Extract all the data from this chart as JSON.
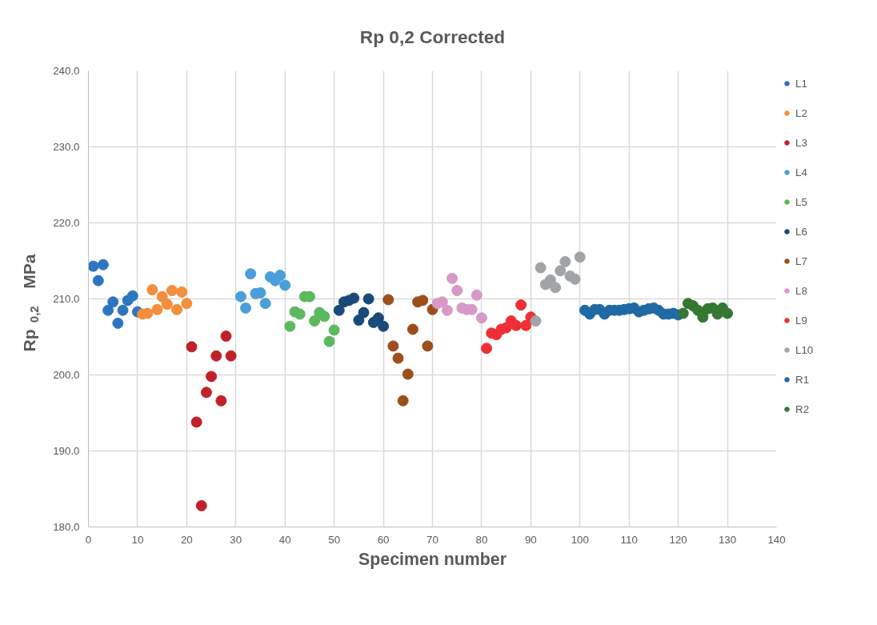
{
  "chart_data": {
    "type": "scatter",
    "title": "Rp 0,2 Corrected",
    "xlabel": "Specimen number",
    "ylabel": "Rp $_{0,2}$  MPa",
    "xlim": [
      0,
      140
    ],
    "ylim": [
      180,
      240
    ],
    "xticks": [
      0,
      10,
      20,
      30,
      40,
      50,
      60,
      70,
      80,
      90,
      100,
      110,
      120,
      130,
      140
    ],
    "yticks": [
      {
        "value": 180,
        "label": "180.0"
      },
      {
        "value": 190,
        "label": "190.0"
      },
      {
        "value": 200,
        "label": "200.0"
      },
      {
        "value": 210,
        "label": "210.0"
      },
      {
        "value": 220,
        "label": "220.0"
      },
      {
        "value": 230,
        "label": "230.0"
      },
      {
        "value": 240,
        "label": "240.0"
      }
    ],
    "grid": true,
    "legend": "right",
    "marker": "circle",
    "series": [
      {
        "name": "L1",
        "color": "#2e75c0",
        "x": [
          1,
          2,
          3,
          4,
          5,
          6,
          7,
          8,
          9,
          10
        ],
        "values": [
          214.3,
          212.4,
          214.5,
          208.5,
          209.6,
          206.8,
          208.5,
          209.8,
          210.4,
          208.3
        ]
      },
      {
        "name": "L2",
        "color": "#f28e3c",
        "x": [
          11,
          12,
          13,
          14,
          15,
          16,
          17,
          18,
          19,
          20
        ],
        "values": [
          208.0,
          208.1,
          211.2,
          208.6,
          210.3,
          209.3,
          211.1,
          208.6,
          210.9,
          209.4
        ]
      },
      {
        "name": "L3",
        "color": "#c0212b",
        "x": [
          21,
          22,
          23,
          24,
          25,
          26,
          27,
          28,
          29
        ],
        "values": [
          203.7,
          193.8,
          182.8,
          197.7,
          199.8,
          202.5,
          196.6,
          205.1,
          202.5
        ]
      },
      {
        "name": "L4",
        "color": "#4a9fdb",
        "x": [
          31,
          32,
          33,
          34,
          35,
          36,
          37,
          38,
          39,
          40
        ],
        "values": [
          210.3,
          208.8,
          213.3,
          210.7,
          210.8,
          209.4,
          212.9,
          212.4,
          213.1,
          211.8
        ]
      },
      {
        "name": "L5",
        "color": "#5cb85c",
        "x": [
          41,
          42,
          43,
          44,
          45,
          46,
          47,
          48,
          49,
          50
        ],
        "values": [
          206.4,
          208.3,
          208.0,
          210.3,
          210.3,
          207.1,
          208.2,
          207.7,
          204.4,
          205.9
        ]
      },
      {
        "name": "L6",
        "color": "#1a4a7a",
        "x": [
          51,
          52,
          53,
          54,
          55,
          56,
          57,
          58,
          59,
          60
        ],
        "values": [
          208.5,
          209.6,
          209.8,
          210.1,
          207.2,
          208.2,
          210.0,
          206.9,
          207.5,
          206.4
        ]
      },
      {
        "name": "L7",
        "color": "#9c4f1c",
        "x": [
          61,
          62,
          63,
          64,
          65,
          66,
          67,
          68,
          69,
          70
        ],
        "values": [
          209.9,
          203.8,
          202.2,
          196.6,
          200.1,
          206.0,
          209.6,
          209.8,
          203.8,
          208.6
        ]
      },
      {
        "name": "L8",
        "color": "#d898c8",
        "x": [
          71,
          72,
          73,
          74,
          75,
          76,
          77,
          78,
          79,
          80
        ],
        "values": [
          209.4,
          209.6,
          208.5,
          212.7,
          211.1,
          208.8,
          208.6,
          208.6,
          210.5,
          207.5
        ]
      },
      {
        "name": "L9",
        "color": "#ef2e35",
        "x": [
          81,
          82,
          83,
          84,
          85,
          86,
          87,
          88,
          89,
          90
        ],
        "values": [
          203.5,
          205.5,
          205.3,
          206.0,
          206.2,
          207.1,
          206.5,
          209.2,
          206.5,
          207.6
        ]
      },
      {
        "name": "L10",
        "color": "#a0a4a6",
        "x": [
          91,
          92,
          93,
          94,
          95,
          96,
          97,
          98,
          99,
          100
        ],
        "values": [
          207.1,
          214.1,
          211.9,
          212.5,
          211.5,
          213.7,
          214.9,
          213.0,
          212.6,
          215.5
        ]
      },
      {
        "name": "R1",
        "color": "#1f6aa5",
        "x": [
          101,
          102,
          103,
          104,
          105,
          106,
          107,
          108,
          109,
          110,
          111,
          112,
          113,
          114,
          115,
          116,
          117,
          118,
          119,
          120
        ],
        "values": [
          208.5,
          208.0,
          208.6,
          208.6,
          208.0,
          208.5,
          208.5,
          208.5,
          208.6,
          208.7,
          208.8,
          208.3,
          208.5,
          208.7,
          208.8,
          208.5,
          208.0,
          208.0,
          208.1,
          207.9
        ]
      },
      {
        "name": "R2",
        "color": "#347834",
        "x": [
          121,
          122,
          123,
          124,
          125,
          126,
          127,
          128,
          129,
          130
        ],
        "values": [
          208.1,
          209.4,
          209.1,
          208.5,
          207.6,
          208.7,
          208.8,
          208.0,
          208.8,
          208.1
        ]
      }
    ]
  }
}
